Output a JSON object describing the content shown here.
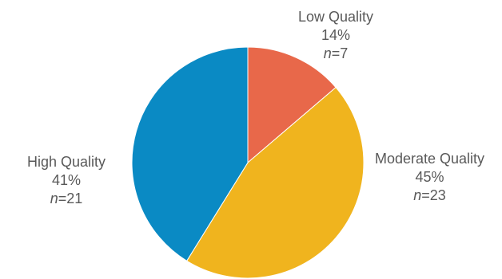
{
  "chart_data": {
    "type": "pie",
    "title": "",
    "slices": [
      {
        "label": "Low Quality",
        "percent_label": "14%",
        "n_prefix": "n",
        "n_value": "=7",
        "count": 7,
        "color": "#E8684A"
      },
      {
        "label": "Moderate Quality",
        "percent_label": "45%",
        "n_prefix": "n",
        "n_value": "=23",
        "count": 23,
        "color": "#F0B41E"
      },
      {
        "label": "High Quality",
        "percent_label": "41%",
        "n_prefix": "n",
        "n_value": "=21",
        "count": 21,
        "color": "#0A8AC4"
      }
    ],
    "start_angle": "12 o'clock",
    "direction": "clockwise",
    "legend": "none",
    "data_labels": "outside"
  }
}
